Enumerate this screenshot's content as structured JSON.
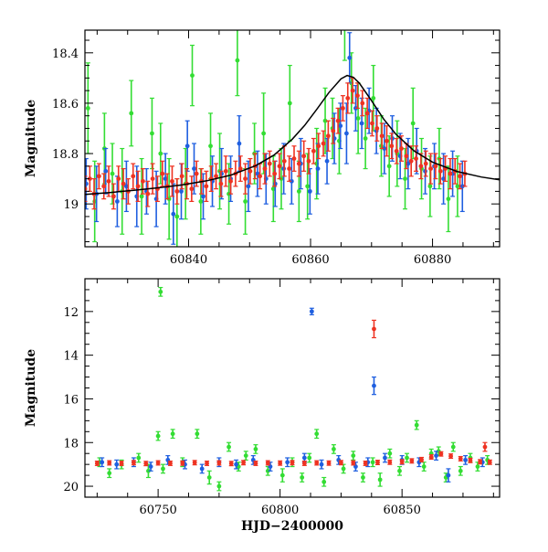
{
  "chart_data": [
    {
      "type": "scatter",
      "title": "",
      "xlabel": "",
      "ylabel": "Magnitude",
      "xlim": [
        60823,
        60891
      ],
      "ylim": [
        19.17,
        18.31
      ],
      "y_inverted": true,
      "grid": false,
      "legend": "none",
      "x_ticks": [
        60840,
        60860,
        60880
      ],
      "y_ticks": [
        18.4,
        18.6,
        18.8,
        19
      ],
      "colors": {
        "green": "#33dd33",
        "blue": "#1f5fe0",
        "red": "#ee3322",
        "model": "#000000"
      },
      "series": [
        {
          "color": "#33dd33",
          "x": [
            60823.5,
            60824.6,
            60826.2,
            60827.5,
            60829.1,
            60830.6,
            60832.3,
            60834.0,
            60835.4,
            60836.8,
            60838.1,
            60839.5,
            60840.6,
            60842.0,
            60843.6,
            60845.1,
            60846.6,
            60848.0,
            60849.3,
            60850.8,
            60852.3,
            60853.9,
            60855.2,
            60856.6,
            60858.1,
            60859.5,
            60861.0,
            60862.4,
            60863.6,
            60864.7,
            60865.6,
            60866.7,
            60867.8,
            60869.0,
            60870.3,
            60871.6,
            60872.9,
            60874.2,
            60875.5,
            60876.8,
            60878.2,
            60879.6,
            60881.1,
            60882.6,
            60884.1
          ],
          "y": [
            18.62,
            18.99,
            18.78,
            18.88,
            18.95,
            18.64,
            18.97,
            18.72,
            18.8,
            18.98,
            19.05,
            18.92,
            18.49,
            18.99,
            18.77,
            18.87,
            18.96,
            18.43,
            18.99,
            18.8,
            18.72,
            18.94,
            18.9,
            18.6,
            18.95,
            18.93,
            18.84,
            18.67,
            18.7,
            18.75,
            18.28,
            18.52,
            18.66,
            18.74,
            18.58,
            18.77,
            18.85,
            18.8,
            18.9,
            18.68,
            18.86,
            18.93,
            18.82,
            18.98,
            18.93
          ],
          "err": [
            0.18,
            0.16,
            0.14,
            0.12,
            0.17,
            0.13,
            0.15,
            0.14,
            0.12,
            0.16,
            0.15,
            0.14,
            0.12,
            0.13,
            0.13,
            0.15,
            0.12,
            0.14,
            0.13,
            0.12,
            0.16,
            0.13,
            0.12,
            0.15,
            0.12,
            0.13,
            0.14,
            0.13,
            0.12,
            0.13,
            0.15,
            0.12,
            0.14,
            0.12,
            0.13,
            0.12,
            0.12,
            0.13,
            0.12,
            0.14,
            0.12,
            0.12,
            0.12,
            0.13,
            0.12
          ]
        },
        {
          "color": "#1f5fe0",
          "x": [
            60823.2,
            60824.9,
            60826.4,
            60828.3,
            60829.8,
            60831.5,
            60833.1,
            60834.7,
            60836.2,
            60837.5,
            60838.8,
            60839.8,
            60840.9,
            60842.4,
            60843.9,
            60845.4,
            60846.9,
            60848.3,
            60849.8,
            60851.3,
            60852.7,
            60854.2,
            60855.6,
            60856.9,
            60858.4,
            60859.9,
            60861.2,
            60862.7,
            60863.9,
            60864.9,
            60865.9,
            60866.4,
            60867.4,
            60868.4,
            60869.6,
            60870.8,
            60872.1,
            60873.4,
            60874.7,
            60876.0,
            60877.4,
            60878.8,
            60880.3,
            60881.8,
            60883.3,
            60884.9
          ],
          "y": [
            18.92,
            18.96,
            18.87,
            18.99,
            18.93,
            18.97,
            18.95,
            18.98,
            18.9,
            19.04,
            18.95,
            18.77,
            18.86,
            18.97,
            18.91,
            18.88,
            18.9,
            18.76,
            18.93,
            18.88,
            18.9,
            18.92,
            18.86,
            18.91,
            18.84,
            18.95,
            18.86,
            18.83,
            18.74,
            18.69,
            18.72,
            18.42,
            18.62,
            18.68,
            18.63,
            18.71,
            18.78,
            18.74,
            18.81,
            18.84,
            18.79,
            18.87,
            18.85,
            18.9,
            18.88,
            18.93
          ],
          "err": [
            0.1,
            0.11,
            0.09,
            0.1,
            0.1,
            0.12,
            0.09,
            0.11,
            0.1,
            0.12,
            0.11,
            0.1,
            0.1,
            0.09,
            0.1,
            0.1,
            0.09,
            0.11,
            0.1,
            0.09,
            0.1,
            0.09,
            0.1,
            0.09,
            0.1,
            0.09,
            0.1,
            0.09,
            0.1,
            0.09,
            0.12,
            0.1,
            0.09,
            0.1,
            0.09,
            0.09,
            0.1,
            0.09,
            0.09,
            0.1,
            0.09,
            0.09,
            0.09,
            0.1,
            0.09,
            0.1
          ]
        },
        {
          "color": "#ee3322",
          "x": [
            60823.0,
            60823.8,
            60824.5,
            60825.3,
            60826.1,
            60826.9,
            60827.7,
            60828.5,
            60829.3,
            60830.1,
            60830.9,
            60831.7,
            60832.5,
            60833.3,
            60834.1,
            60834.9,
            60835.7,
            60836.5,
            60837.3,
            60838.1,
            60838.9,
            60839.7,
            60840.5,
            60841.3,
            60842.1,
            60842.9,
            60843.7,
            60844.5,
            60845.3,
            60846.1,
            60846.9,
            60847.7,
            60848.5,
            60849.3,
            60850.1,
            60850.9,
            60851.7,
            60852.5,
            60853.3,
            60854.1,
            60854.9,
            60855.7,
            60856.5,
            60857.3,
            60858.1,
            60858.9,
            60859.7,
            60860.5,
            60861.3,
            60862.1,
            60862.9,
            60863.7,
            60864.5,
            60865.3,
            60866.1,
            60866.9,
            60867.7,
            60868.5,
            60869.3,
            60870.1,
            60870.9,
            60871.7,
            60872.5,
            60873.3,
            60874.1,
            60874.9,
            60875.7,
            60876.5,
            60877.3,
            60878.1,
            60878.9,
            60879.7,
            60880.5,
            60881.3,
            60882.1,
            60882.9,
            60883.7,
            60884.5,
            60885.3
          ],
          "y": [
            18.94,
            18.9,
            18.96,
            18.89,
            18.93,
            18.91,
            18.97,
            18.9,
            18.92,
            18.95,
            18.89,
            18.93,
            18.91,
            18.96,
            18.9,
            18.94,
            18.88,
            18.93,
            18.91,
            18.95,
            18.89,
            18.92,
            18.94,
            18.88,
            18.91,
            18.93,
            18.9,
            18.89,
            18.92,
            18.87,
            18.91,
            18.88,
            18.86,
            18.9,
            18.87,
            18.85,
            18.89,
            18.86,
            18.84,
            18.88,
            18.85,
            18.83,
            18.86,
            18.82,
            18.84,
            18.81,
            18.83,
            18.79,
            18.77,
            18.76,
            18.73,
            18.71,
            18.67,
            18.62,
            18.58,
            18.55,
            18.57,
            18.6,
            18.64,
            18.68,
            18.7,
            18.73,
            18.75,
            18.77,
            18.79,
            18.78,
            18.81,
            18.83,
            18.82,
            18.85,
            18.84,
            18.86,
            18.85,
            18.87,
            18.86,
            18.88,
            18.87,
            18.89,
            18.88
          ],
          "err": [
            0.05,
            0.05,
            0.06,
            0.05,
            0.05,
            0.06,
            0.05,
            0.05,
            0.06,
            0.05,
            0.05,
            0.06,
            0.05,
            0.05,
            0.06,
            0.05,
            0.05,
            0.05,
            0.06,
            0.05,
            0.05,
            0.06,
            0.05,
            0.05,
            0.05,
            0.06,
            0.05,
            0.05,
            0.05,
            0.06,
            0.05,
            0.05,
            0.05,
            0.06,
            0.05,
            0.05,
            0.05,
            0.06,
            0.05,
            0.05,
            0.05,
            0.06,
            0.05,
            0.05,
            0.05,
            0.06,
            0.05,
            0.05,
            0.05,
            0.05,
            0.06,
            0.05,
            0.05,
            0.05,
            0.06,
            0.05,
            0.05,
            0.05,
            0.06,
            0.05,
            0.05,
            0.05,
            0.06,
            0.05,
            0.05,
            0.05,
            0.05,
            0.06,
            0.05,
            0.05,
            0.05,
            0.06,
            0.05,
            0.05,
            0.05,
            0.06,
            0.05,
            0.05,
            0.05
          ]
        }
      ],
      "model_curve": {
        "color": "#000000",
        "x": [
          60823,
          60827,
          60831,
          60835,
          60839,
          60843,
          60847,
          60851,
          60854,
          60857,
          60859,
          60861,
          60863,
          60865,
          60866,
          60867,
          60868,
          60870,
          60872,
          60874,
          60877,
          60880,
          60884,
          60888,
          60891
        ],
        "y": [
          18.962,
          18.955,
          18.946,
          18.936,
          18.924,
          18.908,
          18.885,
          18.848,
          18.806,
          18.743,
          18.689,
          18.625,
          18.558,
          18.503,
          18.49,
          18.497,
          18.52,
          18.59,
          18.663,
          18.723,
          18.79,
          18.834,
          18.871,
          18.893,
          18.904
        ]
      }
    },
    {
      "type": "scatter",
      "title": "",
      "xlabel": "HJD−2400000",
      "ylabel": "Magnitude",
      "xlim": [
        60720,
        60890
      ],
      "ylim": [
        20.5,
        10.5
      ],
      "y_inverted": true,
      "grid": false,
      "legend": "none",
      "x_ticks": [
        60750,
        60800,
        60850
      ],
      "y_ticks": [
        12,
        14,
        16,
        18,
        20
      ],
      "colors": {
        "green": "#33dd33",
        "blue": "#1f5fe0",
        "red": "#ee3322"
      },
      "series": [
        {
          "color": "#33dd33",
          "x": [
            60751,
            60726,
            60730,
            60735,
            60742,
            60746,
            60750,
            60752,
            60756,
            60760,
            60766,
            60771,
            60775,
            60779,
            60783,
            60786,
            60790,
            60795,
            60801,
            60805,
            60809,
            60812,
            60815,
            60818,
            60822,
            60826,
            60830,
            60834,
            60838,
            60841,
            60845,
            60849,
            60852,
            60856,
            60859,
            60862,
            60865,
            60868,
            60871,
            60874,
            60878,
            60881,
            60885
          ],
          "y": [
            11.1,
            18.9,
            19.4,
            19.0,
            18.7,
            19.3,
            17.7,
            19.2,
            17.6,
            18.9,
            17.6,
            19.6,
            20.0,
            18.2,
            19.1,
            18.6,
            18.3,
            19.3,
            19.5,
            18.9,
            19.6,
            18.7,
            17.6,
            19.8,
            18.3,
            19.2,
            18.6,
            19.6,
            18.9,
            19.7,
            18.5,
            19.3,
            18.7,
            17.2,
            19.1,
            18.5,
            18.4,
            19.6,
            18.2,
            19.3,
            18.7,
            19.1,
            18.8
          ],
          "err": [
            0.2,
            0.2,
            0.2,
            0.2,
            0.2,
            0.3,
            0.2,
            0.2,
            0.2,
            0.2,
            0.2,
            0.3,
            0.2,
            0.2,
            0.2,
            0.2,
            0.2,
            0.2,
            0.3,
            0.2,
            0.2,
            0.2,
            0.2,
            0.2,
            0.2,
            0.2,
            0.2,
            0.2,
            0.2,
            0.3,
            0.2,
            0.2,
            0.2,
            0.2,
            0.2,
            0.2,
            0.2,
            0.2,
            0.2,
            0.2,
            0.2,
            0.2,
            0.2
          ]
        },
        {
          "color": "#1f5fe0",
          "x": [
            60813,
            60838.5,
            60727,
            60733,
            60740,
            60747,
            60754,
            60761,
            60768,
            60775,
            60782,
            60789,
            60796,
            60803,
            60810,
            60817,
            60824,
            60831,
            60836,
            60843,
            60850,
            60857,
            60864,
            60869,
            60876,
            60883
          ],
          "y": [
            12.0,
            15.4,
            18.9,
            19.0,
            18.9,
            19.1,
            18.8,
            19.0,
            19.2,
            18.9,
            19.0,
            18.8,
            19.1,
            18.9,
            18.7,
            19.0,
            18.8,
            19.1,
            18.9,
            18.7,
            18.8,
            18.9,
            18.6,
            19.5,
            18.8,
            18.9
          ],
          "err": [
            0.15,
            0.4,
            0.2,
            0.2,
            0.2,
            0.2,
            0.2,
            0.2,
            0.2,
            0.2,
            0.2,
            0.2,
            0.2,
            0.2,
            0.2,
            0.2,
            0.2,
            0.2,
            0.2,
            0.2,
            0.2,
            0.2,
            0.2,
            0.3,
            0.2,
            0.2
          ]
        },
        {
          "color": "#ee3322",
          "x": [
            60838.5,
            60884,
            60725,
            60730,
            60735,
            60740,
            60745,
            60750,
            60755,
            60760,
            60765,
            60770,
            60775,
            60780,
            60785,
            60790,
            60795,
            60800,
            60805,
            60810,
            60815,
            60820,
            60825,
            60830,
            60835,
            60840,
            60845,
            60850,
            60854,
            60858,
            60862,
            60866,
            60870,
            60874,
            60878,
            60882,
            60886
          ],
          "y": [
            12.8,
            18.2,
            18.95,
            18.93,
            18.95,
            18.92,
            18.96,
            18.93,
            18.95,
            18.94,
            18.92,
            18.95,
            18.93,
            18.96,
            18.92,
            18.95,
            18.93,
            18.94,
            18.92,
            18.95,
            18.93,
            18.94,
            18.92,
            18.93,
            18.95,
            18.91,
            18.9,
            18.88,
            18.84,
            18.78,
            18.66,
            18.52,
            18.62,
            18.74,
            18.82,
            18.88,
            18.9
          ],
          "err": [
            0.4,
            0.2,
            0.1,
            0.1,
            0.1,
            0.1,
            0.1,
            0.1,
            0.1,
            0.1,
            0.1,
            0.1,
            0.1,
            0.1,
            0.1,
            0.1,
            0.1,
            0.1,
            0.1,
            0.1,
            0.1,
            0.1,
            0.1,
            0.1,
            0.1,
            0.1,
            0.1,
            0.1,
            0.1,
            0.1,
            0.1,
            0.1,
            0.1,
            0.1,
            0.1,
            0.1,
            0.1
          ]
        }
      ]
    }
  ]
}
